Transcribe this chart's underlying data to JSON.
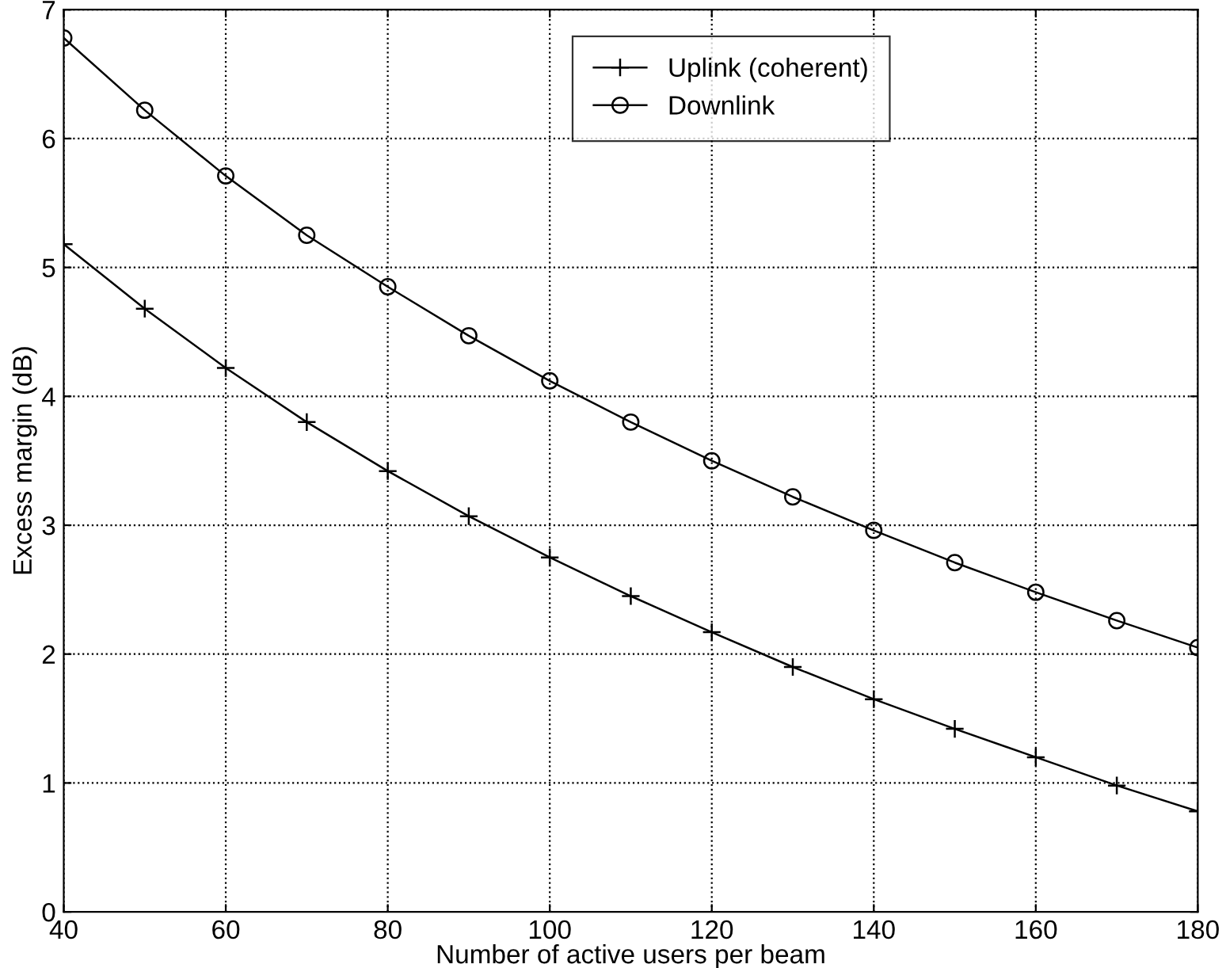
{
  "chart_data": {
    "type": "line",
    "xlabel": "Number of active users per beam",
    "ylabel": "Excess margin (dB)",
    "x": [
      40,
      50,
      60,
      70,
      80,
      90,
      100,
      110,
      120,
      130,
      140,
      150,
      160,
      170,
      180
    ],
    "series": [
      {
        "name": "Uplink (coherent)",
        "color": "#000000",
        "marker": "cross",
        "values": [
          5.18,
          4.68,
          4.22,
          3.8,
          3.42,
          3.07,
          2.75,
          2.45,
          2.17,
          1.9,
          1.65,
          1.42,
          1.2,
          0.98,
          0.78
        ]
      },
      {
        "name": "Downlink",
        "color": "#000000",
        "marker": "circle",
        "values": [
          6.78,
          6.22,
          5.71,
          5.25,
          4.85,
          4.47,
          4.12,
          3.8,
          3.5,
          3.22,
          2.96,
          2.71,
          2.48,
          2.26,
          2.05
        ]
      }
    ],
    "xlim": [
      40,
      180
    ],
    "xticks": [
      40,
      60,
      80,
      100,
      120,
      140,
      160,
      180
    ],
    "ylim": [
      0,
      7
    ],
    "yticks": [
      0,
      1,
      2,
      3,
      4,
      5,
      6,
      7
    ],
    "grid": true,
    "legend": "top right",
    "line_style": "solid"
  }
}
